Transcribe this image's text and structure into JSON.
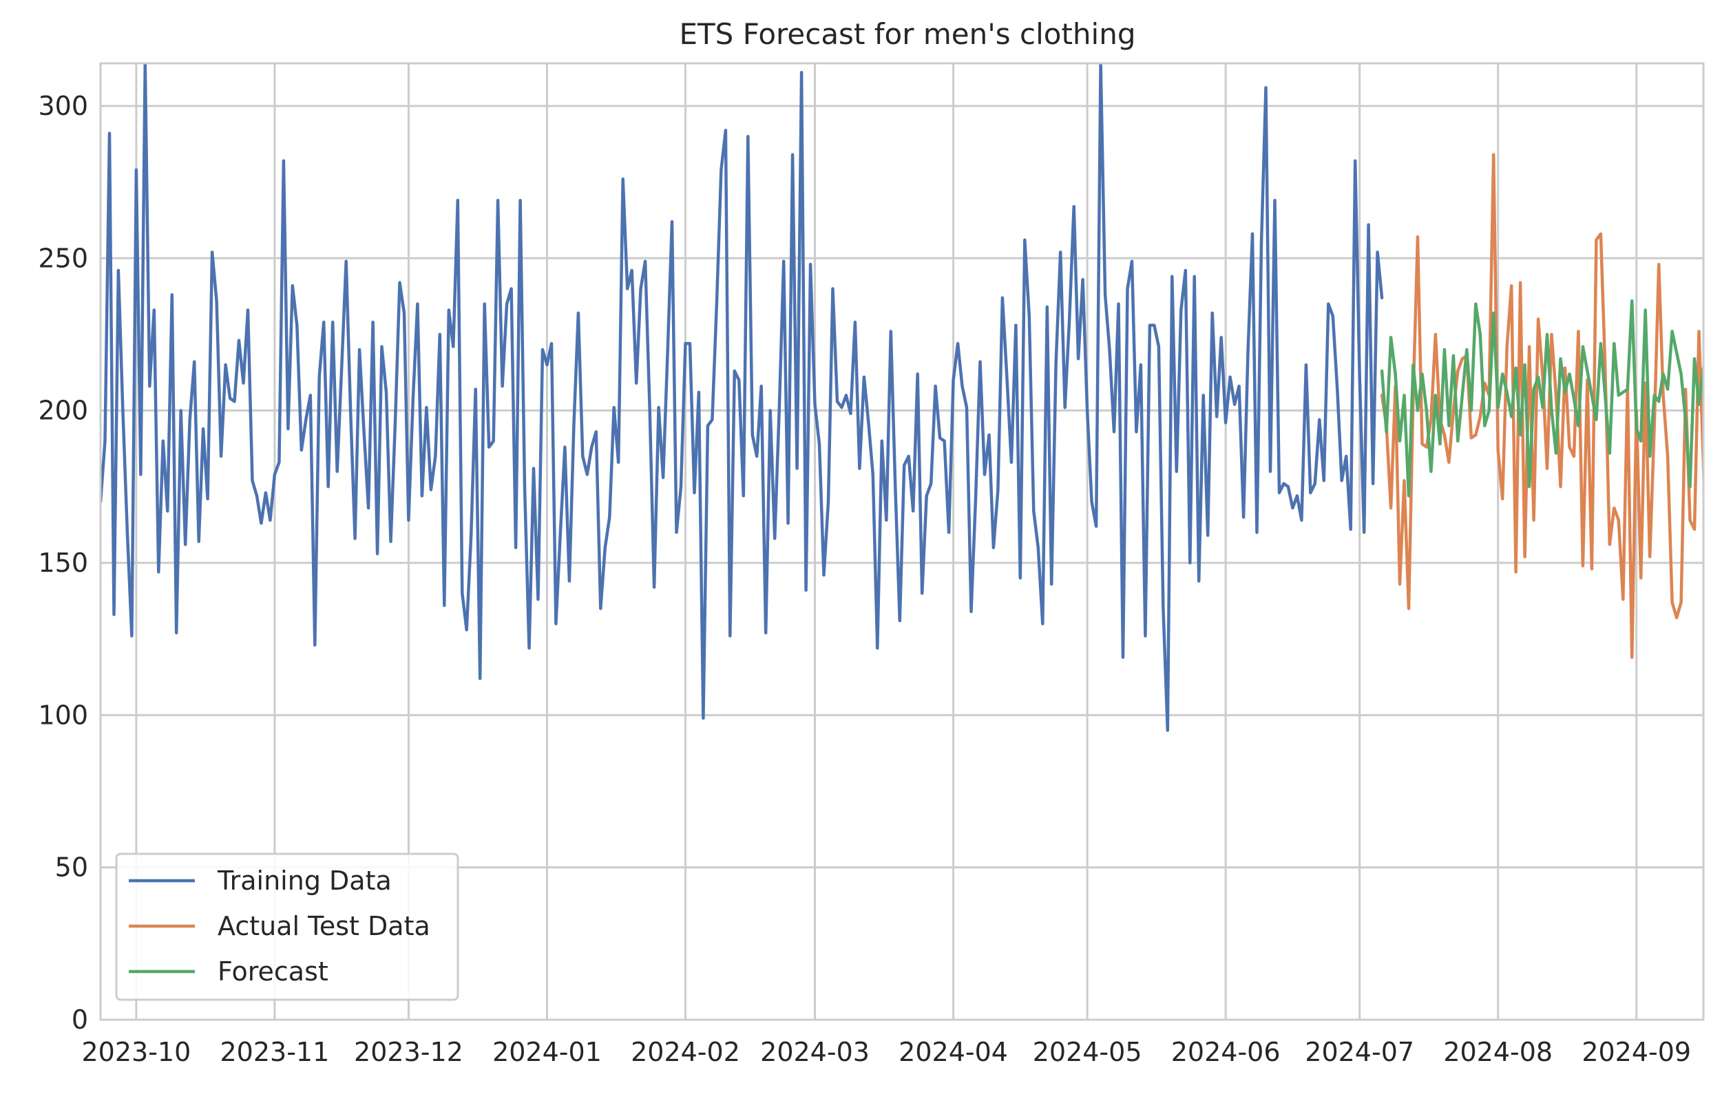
{
  "chart_data": {
    "type": "line",
    "title": "ETS Forecast for men's clothing",
    "xlabel": "",
    "ylabel": "",
    "x_range": [
      "2023-09-23",
      "2024-09-16"
    ],
    "ylim": [
      0,
      314
    ],
    "x_ticks": [
      "2023-10",
      "2023-11",
      "2023-12",
      "2024-01",
      "2024-02",
      "2024-03",
      "2024-04",
      "2024-05",
      "2024-06",
      "2024-07",
      "2024-08",
      "2024-09"
    ],
    "y_ticks": [
      0,
      50,
      100,
      150,
      200,
      250,
      300
    ],
    "grid": true,
    "legend_position": "lower-left",
    "series": [
      {
        "name": "Training Data",
        "color": "#4c72b0",
        "start": "2023-09-23",
        "step_days": 1,
        "values": [
          170,
          190,
          291,
          133,
          246,
          200,
          160,
          126,
          279,
          179,
          314,
          208,
          233,
          147,
          190,
          167,
          238,
          127,
          200,
          156,
          197,
          216,
          157,
          194,
          171,
          252,
          236,
          185,
          215,
          204,
          203,
          223,
          209,
          233,
          177,
          172,
          163,
          173,
          164,
          179,
          183,
          282,
          194,
          241,
          228,
          187,
          197,
          205,
          123,
          211,
          229,
          175,
          229,
          180,
          214,
          249,
          200,
          158,
          220,
          193,
          168,
          229,
          153,
          221,
          206,
          157,
          196,
          242,
          232,
          164,
          204,
          235,
          172,
          201,
          174,
          185,
          225,
          136,
          233,
          221,
          269,
          140,
          128,
          159,
          207,
          112,
          235,
          188,
          190,
          269,
          208,
          235,
          240,
          155,
          269,
          175,
          122,
          181,
          138,
          220,
          215,
          222,
          130,
          160,
          188,
          144,
          195,
          232,
          185,
          179,
          188,
          193,
          135,
          155,
          165,
          201,
          183,
          276,
          240,
          246,
          209,
          240,
          249,
          201,
          142,
          201,
          178,
          219,
          262,
          160,
          175,
          222,
          222,
          173,
          206,
          99,
          195,
          197,
          235,
          279,
          292,
          126,
          213,
          210,
          172,
          290,
          192,
          185,
          208,
          127,
          200,
          158,
          200,
          249,
          163,
          284,
          181,
          311,
          141,
          248,
          202,
          189,
          146,
          170,
          240,
          203,
          201,
          205,
          199,
          229,
          181,
          211,
          196,
          179,
          122,
          190,
          164,
          226,
          175,
          131,
          182,
          185,
          167,
          212,
          140,
          172,
          176,
          208,
          191,
          190,
          160,
          210,
          222,
          208,
          201,
          134,
          171,
          216,
          179,
          192,
          155,
          174,
          237,
          211,
          183,
          228,
          145,
          256,
          231,
          167,
          155,
          130,
          234,
          143,
          216,
          252,
          201,
          230,
          267,
          217,
          243,
          200,
          170,
          162,
          314,
          238,
          220,
          193,
          235,
          119,
          240,
          249,
          193,
          215,
          126,
          228,
          228,
          221,
          135,
          95,
          244,
          180,
          233,
          246,
          150,
          244,
          144,
          205,
          159,
          232,
          198,
          224,
          196,
          211,
          202,
          208,
          165,
          220,
          258,
          160,
          255,
          306,
          180,
          269,
          173,
          176,
          175,
          168,
          172,
          164,
          215,
          173,
          176,
          197,
          177,
          235,
          231,
          207,
          177,
          185,
          161,
          282,
          211,
          160,
          261,
          176,
          252,
          237
        ]
      },
      {
        "name": "Actual Test Data",
        "color": "#dd8452",
        "start": "2024-07-06",
        "step_days": 1,
        "values": [
          205,
          195,
          168,
          208,
          143,
          177,
          135,
          205,
          257,
          189,
          188,
          197,
          225,
          197,
          192,
          183,
          200,
          213,
          217,
          218,
          191,
          192,
          198,
          209,
          205,
          284,
          187,
          171,
          221,
          241,
          147,
          242,
          152,
          221,
          164,
          230,
          211,
          181,
          225,
          205,
          175,
          214,
          188,
          185,
          226,
          149,
          210,
          148,
          256,
          258,
          214,
          156,
          168,
          164,
          138,
          208,
          119,
          200,
          145,
          209,
          152,
          195,
          248,
          205,
          185,
          137,
          132,
          137,
          207,
          164,
          161,
          226,
          182,
          133,
          130,
          183
        ]
      },
      {
        "name": "Forecast",
        "color": "#55a868",
        "start": "2024-07-06",
        "step_days": 1,
        "values": [
          213,
          193,
          224,
          212,
          190,
          205,
          172,
          215,
          200,
          212,
          200,
          180,
          205,
          189,
          220,
          195,
          218,
          190,
          205,
          220,
          200,
          235,
          225,
          195,
          200,
          232,
          201,
          212,
          206,
          198,
          214,
          192,
          215,
          175,
          207,
          211,
          201,
          225,
          200,
          186,
          217,
          206,
          212,
          204,
          195,
          221,
          213,
          205,
          197,
          222,
          205,
          186,
          222,
          205,
          206,
          207,
          236,
          194,
          190,
          233,
          185,
          205,
          203,
          212,
          207,
          226,
          219,
          212,
          197,
          175,
          217,
          202,
          214,
          208,
          200,
          190
        ]
      }
    ]
  }
}
